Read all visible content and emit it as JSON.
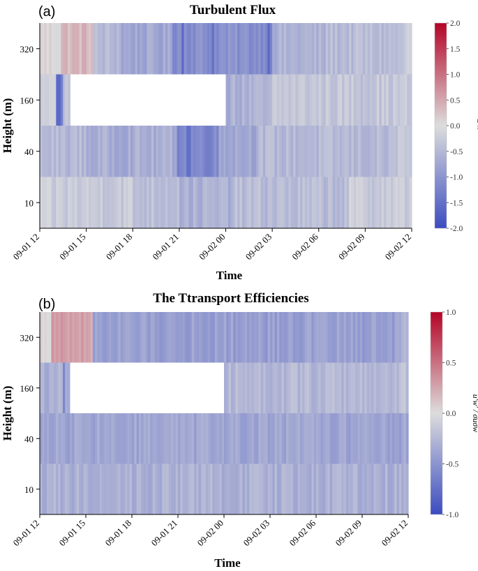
{
  "chart_data": [
    {
      "type": "heatmap",
      "panel_label": "(a)",
      "title": "Turbulent Flux",
      "xlabel": "Time",
      "ylabel": "Height (m)",
      "x_ticks": [
        "09-01 12",
        "09-01 15",
        "09-01 18",
        "09-01 21",
        "09-02 00",
        "09-02 03",
        "09-02 06",
        "09-02 09",
        "09-02 12"
      ],
      "y_levels": [
        "320",
        "160",
        "40",
        "10"
      ],
      "colorbar": {
        "label": "u′w′",
        "range": [
          -2.0,
          2.0
        ],
        "ticks": [
          "2.0",
          "1.5",
          "1.0",
          "0.5",
          "0.0",
          "-0.5",
          "-1.0",
          "-1.5",
          "-2.0"
        ],
        "colors": [
          "#3b4cc0",
          "#dddddd",
          "#b40426"
        ]
      },
      "missing_data": [
        {
          "level": "160",
          "from_hour": 2.0,
          "to_hour": 12.0
        }
      ],
      "x_range_hours": [
        0,
        24
      ],
      "level_profiles": [
        {
          "level": "320",
          "segments": [
            {
              "from": 0,
              "to": 1.3,
              "value": 0.05
            },
            {
              "from": 1.3,
              "to": 3.4,
              "value": 0.35
            },
            {
              "from": 3.4,
              "to": 5.2,
              "value": -0.5
            },
            {
              "from": 5.2,
              "to": 8.5,
              "value": -0.75
            },
            {
              "from": 8.5,
              "to": 15.0,
              "value": -1.05
            },
            {
              "from": 15.0,
              "to": 18.5,
              "value": -0.6
            },
            {
              "from": 18.5,
              "to": 23.5,
              "value": -0.45
            },
            {
              "from": 23.5,
              "to": 24,
              "value": -0.2
            }
          ]
        },
        {
          "level": "160",
          "segments": [
            {
              "from": 0,
              "to": 2.0,
              "value": -0.25
            },
            {
              "from": 12.0,
              "to": 15.0,
              "value": -0.6
            },
            {
              "from": 15.0,
              "to": 24,
              "value": -0.3
            }
          ]
        },
        {
          "level": "40",
          "segments": [
            {
              "from": 0,
              "to": 3.0,
              "value": -0.5
            },
            {
              "from": 3.0,
              "to": 8.8,
              "value": -0.65
            },
            {
              "from": 8.8,
              "to": 11.5,
              "value": -1.15
            },
            {
              "from": 11.5,
              "to": 14.0,
              "value": -0.7
            },
            {
              "from": 14.0,
              "to": 23.0,
              "value": -0.5
            },
            {
              "from": 23.0,
              "to": 24,
              "value": -0.3
            }
          ]
        },
        {
          "level": "10",
          "segments": [
            {
              "from": 0,
              "to": 6.0,
              "value": -0.25
            },
            {
              "from": 6.0,
              "to": 9.0,
              "value": -0.4
            },
            {
              "from": 9.0,
              "to": 12.5,
              "value": -0.6
            },
            {
              "from": 12.5,
              "to": 20.0,
              "value": -0.45
            },
            {
              "from": 20.0,
              "to": 24,
              "value": -0.25
            }
          ]
        }
      ],
      "strong_streaks": [
        {
          "level": "160",
          "hour": 1.2,
          "value": -1.6
        },
        {
          "level": "160",
          "hour": 1.4,
          "value": -1.3
        },
        {
          "level": "320",
          "hour": 9.2,
          "value": -1.6
        },
        {
          "level": "320",
          "hour": 11.2,
          "value": -1.5
        },
        {
          "level": "320",
          "hour": 14.8,
          "value": -1.6
        },
        {
          "level": "40",
          "hour": 9.6,
          "value": -1.5
        }
      ]
    },
    {
      "type": "heatmap",
      "panel_label": "(b)",
      "title": "The Ttransport Efficiencies",
      "xlabel": "Time",
      "ylabel": "Height (m)",
      "x_ticks": [
        "09-01 12",
        "09-01 15",
        "09-01 18",
        "09-01 21",
        "09-02 00",
        "09-02 03",
        "09-02 06",
        "09-02 09",
        "09-02 12"
      ],
      "y_levels": [
        "320",
        "160",
        "40",
        "10"
      ],
      "colorbar": {
        "label": "u′w′ / σuσw",
        "range": [
          -1.0,
          1.0
        ],
        "ticks": [
          "1.0",
          "0.5",
          "0.0",
          "-0.5",
          "-1.0"
        ],
        "colors": [
          "#3b4cc0",
          "#dddddd",
          "#b40426"
        ]
      },
      "missing_data": [
        {
          "level": "160",
          "from_hour": 2.0,
          "to_hour": 12.0
        }
      ],
      "x_range_hours": [
        0,
        24
      ],
      "level_profiles": [
        {
          "level": "320",
          "segments": [
            {
              "from": 0,
              "to": 0.8,
              "value": 0.05
            },
            {
              "from": 0.8,
              "to": 3.4,
              "value": 0.28
            },
            {
              "from": 3.4,
              "to": 23.5,
              "value": -0.42
            },
            {
              "from": 23.5,
              "to": 24,
              "value": -0.25
            }
          ]
        },
        {
          "level": "160",
          "segments": [
            {
              "from": 0,
              "to": 2.0,
              "value": -0.3
            },
            {
              "from": 12.0,
              "to": 23.5,
              "value": -0.25
            },
            {
              "from": 23.5,
              "to": 24,
              "value": -0.2
            }
          ]
        },
        {
          "level": "40",
          "segments": [
            {
              "from": 0,
              "to": 24,
              "value": -0.38
            }
          ]
        },
        {
          "level": "10",
          "segments": [
            {
              "from": 0,
              "to": 24,
              "value": -0.3
            }
          ]
        }
      ],
      "strong_streaks": [
        {
          "level": "160",
          "hour": 1.6,
          "value": -0.6
        }
      ]
    }
  ]
}
